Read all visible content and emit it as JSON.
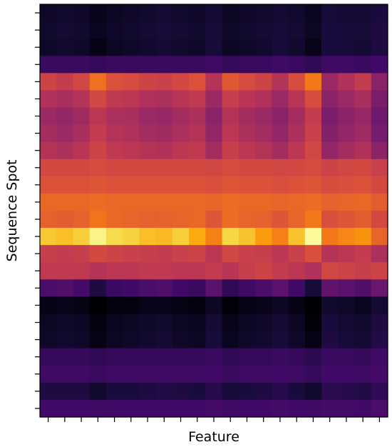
{
  "chart_data": {
    "type": "heatmap",
    "title": "",
    "xlabel": "Feature",
    "ylabel": "Sequence Spot",
    "colormap": "inferno",
    "vmin": 0,
    "vmax": 1,
    "n_cols": 21,
    "n_rows": 24,
    "x_tick_labels": [],
    "y_tick_labels": [],
    "col_profile": [
      0.9,
      0.85,
      0.92,
      1.2,
      1.05,
      1.0,
      0.95,
      0.93,
      1.0,
      1.05,
      0.85,
      1.1,
      1.0,
      0.95,
      0.85,
      1.0,
      1.3,
      0.8,
      0.9,
      0.95,
      0.75
    ],
    "values": [
      [
        0.07,
        0.08,
        0.07,
        0.04,
        0.06,
        0.07,
        0.08,
        0.09,
        0.08,
        0.07,
        0.09,
        0.06,
        0.07,
        0.08,
        0.09,
        0.08,
        0.05,
        0.1,
        0.09,
        0.09,
        0.11
      ],
      [
        0.08,
        0.09,
        0.08,
        0.05,
        0.07,
        0.08,
        0.09,
        0.1,
        0.09,
        0.08,
        0.1,
        0.07,
        0.08,
        0.09,
        0.1,
        0.09,
        0.06,
        0.11,
        0.1,
        0.1,
        0.12
      ],
      [
        0.07,
        0.08,
        0.07,
        0.03,
        0.06,
        0.07,
        0.08,
        0.09,
        0.08,
        0.07,
        0.1,
        0.06,
        0.07,
        0.08,
        0.1,
        0.08,
        0.04,
        0.11,
        0.1,
        0.09,
        0.12
      ],
      [
        0.18,
        0.18,
        0.18,
        0.17,
        0.18,
        0.18,
        0.18,
        0.18,
        0.18,
        0.18,
        0.19,
        0.17,
        0.18,
        0.18,
        0.19,
        0.18,
        0.16,
        0.19,
        0.19,
        0.18,
        0.2
      ],
      [
        0.55,
        0.52,
        0.56,
        0.68,
        0.6,
        0.58,
        0.55,
        0.54,
        0.57,
        0.6,
        0.48,
        0.62,
        0.58,
        0.55,
        0.48,
        0.58,
        0.7,
        0.42,
        0.47,
        0.52,
        0.38
      ],
      [
        0.47,
        0.45,
        0.48,
        0.56,
        0.51,
        0.5,
        0.47,
        0.46,
        0.49,
        0.51,
        0.42,
        0.53,
        0.49,
        0.47,
        0.42,
        0.49,
        0.58,
        0.38,
        0.42,
        0.45,
        0.34
      ],
      [
        0.42,
        0.4,
        0.43,
        0.5,
        0.46,
        0.45,
        0.42,
        0.41,
        0.44,
        0.46,
        0.38,
        0.48,
        0.44,
        0.42,
        0.38,
        0.44,
        0.52,
        0.34,
        0.38,
        0.41,
        0.31
      ],
      [
        0.44,
        0.42,
        0.45,
        0.52,
        0.48,
        0.47,
        0.44,
        0.43,
        0.46,
        0.48,
        0.4,
        0.5,
        0.46,
        0.44,
        0.4,
        0.46,
        0.54,
        0.36,
        0.4,
        0.43,
        0.33
      ],
      [
        0.48,
        0.46,
        0.49,
        0.55,
        0.51,
        0.5,
        0.48,
        0.47,
        0.5,
        0.51,
        0.44,
        0.53,
        0.5,
        0.48,
        0.44,
        0.5,
        0.56,
        0.4,
        0.44,
        0.47,
        0.38
      ],
      [
        0.57,
        0.57,
        0.57,
        0.58,
        0.57,
        0.57,
        0.57,
        0.57,
        0.57,
        0.57,
        0.56,
        0.58,
        0.57,
        0.57,
        0.56,
        0.57,
        0.58,
        0.55,
        0.56,
        0.57,
        0.54
      ],
      [
        0.6,
        0.6,
        0.6,
        0.61,
        0.6,
        0.6,
        0.6,
        0.6,
        0.6,
        0.6,
        0.59,
        0.61,
        0.6,
        0.6,
        0.59,
        0.6,
        0.61,
        0.58,
        0.59,
        0.6,
        0.57
      ],
      [
        0.66,
        0.66,
        0.66,
        0.67,
        0.66,
        0.66,
        0.66,
        0.66,
        0.66,
        0.66,
        0.65,
        0.67,
        0.66,
        0.66,
        0.65,
        0.66,
        0.67,
        0.64,
        0.65,
        0.66,
        0.63
      ],
      [
        0.64,
        0.63,
        0.64,
        0.69,
        0.66,
        0.65,
        0.64,
        0.64,
        0.65,
        0.66,
        0.61,
        0.67,
        0.65,
        0.64,
        0.61,
        0.65,
        0.7,
        0.59,
        0.61,
        0.63,
        0.57
      ],
      [
        0.87,
        0.85,
        0.88,
        0.97,
        0.91,
        0.89,
        0.85,
        0.84,
        0.88,
        0.81,
        0.72,
        0.9,
        0.86,
        0.78,
        0.72,
        0.86,
        0.99,
        0.7,
        0.73,
        0.76,
        0.65
      ],
      [
        0.53,
        0.52,
        0.53,
        0.57,
        0.55,
        0.54,
        0.53,
        0.52,
        0.54,
        0.55,
        0.5,
        0.56,
        0.54,
        0.53,
        0.5,
        0.54,
        0.59,
        0.48,
        0.5,
        0.52,
        0.46
      ],
      [
        0.51,
        0.51,
        0.51,
        0.48,
        0.5,
        0.5,
        0.51,
        0.51,
        0.5,
        0.5,
        0.52,
        0.49,
        0.53,
        0.55,
        0.52,
        0.5,
        0.47,
        0.56,
        0.55,
        0.53,
        0.55
      ],
      [
        0.22,
        0.24,
        0.21,
        0.12,
        0.18,
        0.2,
        0.22,
        0.23,
        0.2,
        0.18,
        0.26,
        0.16,
        0.19,
        0.22,
        0.26,
        0.2,
        0.1,
        0.28,
        0.26,
        0.24,
        0.3
      ],
      [
        0.03,
        0.04,
        0.03,
        0.0,
        0.02,
        0.02,
        0.04,
        0.04,
        0.03,
        0.02,
        0.06,
        0.01,
        0.03,
        0.04,
        0.06,
        0.03,
        0.0,
        0.08,
        0.07,
        0.05,
        0.09
      ],
      [
        0.06,
        0.07,
        0.06,
        0.02,
        0.05,
        0.06,
        0.07,
        0.08,
        0.06,
        0.05,
        0.09,
        0.04,
        0.06,
        0.07,
        0.09,
        0.06,
        0.01,
        0.11,
        0.09,
        0.08,
        0.12
      ],
      [
        0.07,
        0.08,
        0.07,
        0.03,
        0.06,
        0.07,
        0.08,
        0.09,
        0.07,
        0.06,
        0.1,
        0.05,
        0.07,
        0.08,
        0.1,
        0.07,
        0.03,
        0.12,
        0.1,
        0.09,
        0.13
      ],
      [
        0.17,
        0.17,
        0.17,
        0.16,
        0.17,
        0.17,
        0.17,
        0.17,
        0.17,
        0.17,
        0.18,
        0.16,
        0.17,
        0.17,
        0.18,
        0.17,
        0.15,
        0.18,
        0.18,
        0.17,
        0.19
      ],
      [
        0.19,
        0.19,
        0.19,
        0.18,
        0.19,
        0.19,
        0.19,
        0.19,
        0.19,
        0.19,
        0.2,
        0.18,
        0.19,
        0.19,
        0.2,
        0.19,
        0.17,
        0.2,
        0.2,
        0.19,
        0.21
      ],
      [
        0.12,
        0.12,
        0.12,
        0.08,
        0.11,
        0.11,
        0.12,
        0.13,
        0.12,
        0.11,
        0.14,
        0.1,
        0.11,
        0.12,
        0.14,
        0.11,
        0.08,
        0.15,
        0.14,
        0.13,
        0.16
      ],
      [
        0.2,
        0.2,
        0.2,
        0.19,
        0.2,
        0.2,
        0.2,
        0.2,
        0.2,
        0.2,
        0.21,
        0.19,
        0.2,
        0.2,
        0.21,
        0.2,
        0.19,
        0.21,
        0.21,
        0.2,
        0.22
      ]
    ]
  }
}
